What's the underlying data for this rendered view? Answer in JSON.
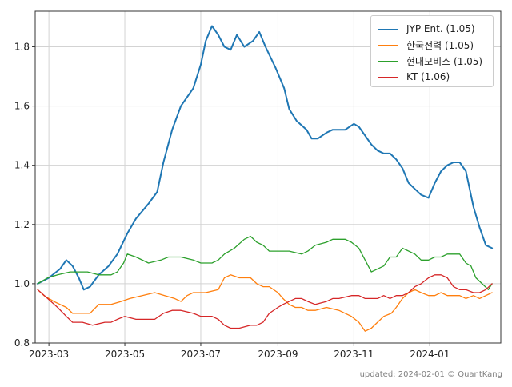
{
  "chart_data": {
    "type": "line",
    "title": "",
    "xlabel": "",
    "ylabel": "",
    "ylim": [
      0.8,
      1.92
    ],
    "xlim": [
      "2023-02-18",
      "2024-02-27"
    ],
    "grid": true,
    "legend_position": "top-right",
    "x_tick_labels": [
      "2023-03",
      "2023-05",
      "2023-07",
      "2023-09",
      "2023-11",
      "2024-01"
    ],
    "x_tick_dates": [
      "2023-03-01",
      "2023-05-01",
      "2023-07-01",
      "2023-09-01",
      "2023-11-01",
      "2024-01-01"
    ],
    "y_tick_labels": [
      "0.8",
      "1.0",
      "1.2",
      "1.4",
      "1.6",
      "1.8"
    ],
    "y_ticks": [
      0.8,
      1.0,
      1.2,
      1.4,
      1.6,
      1.8
    ],
    "series": [
      {
        "name": "JYP Ent. (1.05)",
        "color": "#1f77b4",
        "points": [
          [
            "2023-02-20",
            1.0
          ],
          [
            "2023-03-01",
            1.02
          ],
          [
            "2023-03-10",
            1.05
          ],
          [
            "2023-03-15",
            1.08
          ],
          [
            "2023-03-20",
            1.06
          ],
          [
            "2023-03-25",
            1.02
          ],
          [
            "2023-03-29",
            0.98
          ],
          [
            "2023-04-03",
            0.99
          ],
          [
            "2023-04-10",
            1.03
          ],
          [
            "2023-04-18",
            1.06
          ],
          [
            "2023-04-25",
            1.1
          ],
          [
            "2023-05-03",
            1.17
          ],
          [
            "2023-05-10",
            1.22
          ],
          [
            "2023-05-20",
            1.27
          ],
          [
            "2023-05-27",
            1.31
          ],
          [
            "2023-06-01",
            1.41
          ],
          [
            "2023-06-08",
            1.52
          ],
          [
            "2023-06-15",
            1.6
          ],
          [
            "2023-06-25",
            1.66
          ],
          [
            "2023-07-01",
            1.74
          ],
          [
            "2023-07-05",
            1.82
          ],
          [
            "2023-07-10",
            1.87
          ],
          [
            "2023-07-15",
            1.84
          ],
          [
            "2023-07-20",
            1.8
          ],
          [
            "2023-07-25",
            1.79
          ],
          [
            "2023-07-30",
            1.84
          ],
          [
            "2023-08-05",
            1.8
          ],
          [
            "2023-08-12",
            1.82
          ],
          [
            "2023-08-17",
            1.85
          ],
          [
            "2023-08-22",
            1.8
          ],
          [
            "2023-08-30",
            1.73
          ],
          [
            "2023-09-06",
            1.66
          ],
          [
            "2023-09-10",
            1.59
          ],
          [
            "2023-09-16",
            1.55
          ],
          [
            "2023-09-24",
            1.52
          ],
          [
            "2023-09-28",
            1.49
          ],
          [
            "2023-10-03",
            1.49
          ],
          [
            "2023-10-10",
            1.51
          ],
          [
            "2023-10-15",
            1.52
          ],
          [
            "2023-10-25",
            1.52
          ],
          [
            "2023-11-01",
            1.54
          ],
          [
            "2023-11-05",
            1.53
          ],
          [
            "2023-11-10",
            1.5
          ],
          [
            "2023-11-15",
            1.47
          ],
          [
            "2023-11-20",
            1.45
          ],
          [
            "2023-11-25",
            1.44
          ],
          [
            "2023-11-30",
            1.44
          ],
          [
            "2023-12-05",
            1.42
          ],
          [
            "2023-12-10",
            1.39
          ],
          [
            "2023-12-15",
            1.34
          ],
          [
            "2023-12-20",
            1.32
          ],
          [
            "2023-12-25",
            1.3
          ],
          [
            "2023-12-31",
            1.29
          ],
          [
            "2024-01-05",
            1.34
          ],
          [
            "2024-01-10",
            1.38
          ],
          [
            "2024-01-15",
            1.4
          ],
          [
            "2024-01-20",
            1.41
          ],
          [
            "2024-01-25",
            1.41
          ],
          [
            "2024-01-30",
            1.38
          ],
          [
            "2024-02-05",
            1.26
          ],
          [
            "2024-02-10",
            1.19
          ],
          [
            "2024-02-15",
            1.13
          ],
          [
            "2024-02-20",
            1.12
          ]
        ]
      },
      {
        "name": "한국전력 (1.05)",
        "color": "#ff7f0e",
        "points": [
          [
            "2023-02-20",
            0.98
          ],
          [
            "2023-02-25",
            0.96
          ],
          [
            "2023-03-05",
            0.94
          ],
          [
            "2023-03-15",
            0.92
          ],
          [
            "2023-03-20",
            0.9
          ],
          [
            "2023-03-28",
            0.9
          ],
          [
            "2023-04-03",
            0.9
          ],
          [
            "2023-04-10",
            0.93
          ],
          [
            "2023-04-20",
            0.93
          ],
          [
            "2023-04-28",
            0.94
          ],
          [
            "2023-05-05",
            0.95
          ],
          [
            "2023-05-15",
            0.96
          ],
          [
            "2023-05-25",
            0.97
          ],
          [
            "2023-06-02",
            0.96
          ],
          [
            "2023-06-10",
            0.95
          ],
          [
            "2023-06-15",
            0.94
          ],
          [
            "2023-06-20",
            0.96
          ],
          [
            "2023-06-25",
            0.97
          ],
          [
            "2023-07-05",
            0.97
          ],
          [
            "2023-07-15",
            0.98
          ],
          [
            "2023-07-20",
            1.02
          ],
          [
            "2023-07-25",
            1.03
          ],
          [
            "2023-08-01",
            1.02
          ],
          [
            "2023-08-10",
            1.02
          ],
          [
            "2023-08-15",
            1.0
          ],
          [
            "2023-08-20",
            0.99
          ],
          [
            "2023-08-25",
            0.99
          ],
          [
            "2023-09-01",
            0.97
          ],
          [
            "2023-09-05",
            0.95
          ],
          [
            "2023-09-10",
            0.93
          ],
          [
            "2023-09-15",
            0.92
          ],
          [
            "2023-09-20",
            0.92
          ],
          [
            "2023-09-25",
            0.91
          ],
          [
            "2023-10-01",
            0.91
          ],
          [
            "2023-10-10",
            0.92
          ],
          [
            "2023-10-20",
            0.91
          ],
          [
            "2023-10-25",
            0.9
          ],
          [
            "2023-10-30",
            0.89
          ],
          [
            "2023-11-05",
            0.87
          ],
          [
            "2023-11-10",
            0.84
          ],
          [
            "2023-11-15",
            0.85
          ],
          [
            "2023-11-20",
            0.87
          ],
          [
            "2023-11-25",
            0.89
          ],
          [
            "2023-12-01",
            0.9
          ],
          [
            "2023-12-05",
            0.92
          ],
          [
            "2023-12-10",
            0.95
          ],
          [
            "2023-12-15",
            0.97
          ],
          [
            "2023-12-20",
            0.98
          ],
          [
            "2023-12-25",
            0.97
          ],
          [
            "2023-12-31",
            0.96
          ],
          [
            "2024-01-05",
            0.96
          ],
          [
            "2024-01-10",
            0.97
          ],
          [
            "2024-01-15",
            0.96
          ],
          [
            "2024-01-20",
            0.96
          ],
          [
            "2024-01-25",
            0.96
          ],
          [
            "2024-01-30",
            0.95
          ],
          [
            "2024-02-05",
            0.96
          ],
          [
            "2024-02-10",
            0.95
          ],
          [
            "2024-02-15",
            0.96
          ],
          [
            "2024-02-20",
            0.97
          ]
        ]
      },
      {
        "name": "현대모비스 (1.05)",
        "color": "#2ca02c",
        "points": [
          [
            "2023-02-20",
            1.0
          ],
          [
            "2023-02-28",
            1.02
          ],
          [
            "2023-03-08",
            1.03
          ],
          [
            "2023-03-18",
            1.04
          ],
          [
            "2023-03-25",
            1.04
          ],
          [
            "2023-04-01",
            1.04
          ],
          [
            "2023-04-10",
            1.03
          ],
          [
            "2023-04-20",
            1.03
          ],
          [
            "2023-04-25",
            1.04
          ],
          [
            "2023-04-30",
            1.07
          ],
          [
            "2023-05-03",
            1.1
          ],
          [
            "2023-05-10",
            1.09
          ],
          [
            "2023-05-20",
            1.07
          ],
          [
            "2023-05-30",
            1.08
          ],
          [
            "2023-06-05",
            1.09
          ],
          [
            "2023-06-15",
            1.09
          ],
          [
            "2023-06-25",
            1.08
          ],
          [
            "2023-07-01",
            1.07
          ],
          [
            "2023-07-10",
            1.07
          ],
          [
            "2023-07-15",
            1.08
          ],
          [
            "2023-07-20",
            1.1
          ],
          [
            "2023-07-28",
            1.12
          ],
          [
            "2023-08-05",
            1.15
          ],
          [
            "2023-08-10",
            1.16
          ],
          [
            "2023-08-15",
            1.14
          ],
          [
            "2023-08-20",
            1.13
          ],
          [
            "2023-08-25",
            1.11
          ],
          [
            "2023-09-01",
            1.11
          ],
          [
            "2023-09-10",
            1.11
          ],
          [
            "2023-09-20",
            1.1
          ],
          [
            "2023-09-25",
            1.11
          ],
          [
            "2023-10-01",
            1.13
          ],
          [
            "2023-10-10",
            1.14
          ],
          [
            "2023-10-15",
            1.15
          ],
          [
            "2023-10-25",
            1.15
          ],
          [
            "2023-10-30",
            1.14
          ],
          [
            "2023-11-05",
            1.12
          ],
          [
            "2023-11-10",
            1.08
          ],
          [
            "2023-11-15",
            1.04
          ],
          [
            "2023-11-20",
            1.05
          ],
          [
            "2023-11-25",
            1.06
          ],
          [
            "2023-11-30",
            1.09
          ],
          [
            "2023-12-05",
            1.09
          ],
          [
            "2023-12-10",
            1.12
          ],
          [
            "2023-12-15",
            1.11
          ],
          [
            "2023-12-20",
            1.1
          ],
          [
            "2023-12-25",
            1.08
          ],
          [
            "2023-12-31",
            1.08
          ],
          [
            "2024-01-05",
            1.09
          ],
          [
            "2024-01-10",
            1.09
          ],
          [
            "2024-01-15",
            1.1
          ],
          [
            "2024-01-20",
            1.1
          ],
          [
            "2024-01-25",
            1.1
          ],
          [
            "2024-01-30",
            1.07
          ],
          [
            "2024-02-03",
            1.06
          ],
          [
            "2024-02-07",
            1.02
          ],
          [
            "2024-02-12",
            1.0
          ],
          [
            "2024-02-17",
            0.98
          ],
          [
            "2024-02-20",
            1.0
          ]
        ]
      },
      {
        "name": "KT (1.06)",
        "color": "#d62728",
        "points": [
          [
            "2023-02-20",
            0.98
          ],
          [
            "2023-02-28",
            0.95
          ],
          [
            "2023-03-08",
            0.92
          ],
          [
            "2023-03-15",
            0.89
          ],
          [
            "2023-03-20",
            0.87
          ],
          [
            "2023-03-28",
            0.87
          ],
          [
            "2023-04-05",
            0.86
          ],
          [
            "2023-04-15",
            0.87
          ],
          [
            "2023-04-20",
            0.87
          ],
          [
            "2023-04-25",
            0.88
          ],
          [
            "2023-05-01",
            0.89
          ],
          [
            "2023-05-10",
            0.88
          ],
          [
            "2023-05-20",
            0.88
          ],
          [
            "2023-05-25",
            0.88
          ],
          [
            "2023-06-01",
            0.9
          ],
          [
            "2023-06-08",
            0.91
          ],
          [
            "2023-06-15",
            0.91
          ],
          [
            "2023-06-25",
            0.9
          ],
          [
            "2023-07-01",
            0.89
          ],
          [
            "2023-07-10",
            0.89
          ],
          [
            "2023-07-15",
            0.88
          ],
          [
            "2023-07-20",
            0.86
          ],
          [
            "2023-07-25",
            0.85
          ],
          [
            "2023-08-01",
            0.85
          ],
          [
            "2023-08-10",
            0.86
          ],
          [
            "2023-08-15",
            0.86
          ],
          [
            "2023-08-20",
            0.87
          ],
          [
            "2023-08-25",
            0.9
          ],
          [
            "2023-09-01",
            0.92
          ],
          [
            "2023-09-05",
            0.93
          ],
          [
            "2023-09-10",
            0.94
          ],
          [
            "2023-09-15",
            0.95
          ],
          [
            "2023-09-20",
            0.95
          ],
          [
            "2023-09-25",
            0.94
          ],
          [
            "2023-10-01",
            0.93
          ],
          [
            "2023-10-10",
            0.94
          ],
          [
            "2023-10-15",
            0.95
          ],
          [
            "2023-10-20",
            0.95
          ],
          [
            "2023-10-30",
            0.96
          ],
          [
            "2023-11-05",
            0.96
          ],
          [
            "2023-11-10",
            0.95
          ],
          [
            "2023-11-15",
            0.95
          ],
          [
            "2023-11-20",
            0.95
          ],
          [
            "2023-11-25",
            0.96
          ],
          [
            "2023-11-30",
            0.95
          ],
          [
            "2023-12-05",
            0.96
          ],
          [
            "2023-12-10",
            0.96
          ],
          [
            "2023-12-15",
            0.97
          ],
          [
            "2023-12-20",
            0.99
          ],
          [
            "2023-12-25",
            1.0
          ],
          [
            "2023-12-31",
            1.02
          ],
          [
            "2024-01-05",
            1.03
          ],
          [
            "2024-01-10",
            1.03
          ],
          [
            "2024-01-15",
            1.02
          ],
          [
            "2024-01-20",
            0.99
          ],
          [
            "2024-01-25",
            0.98
          ],
          [
            "2024-01-30",
            0.98
          ],
          [
            "2024-02-05",
            0.97
          ],
          [
            "2024-02-10",
            0.97
          ],
          [
            "2024-02-15",
            0.98
          ],
          [
            "2024-02-20",
            1.0
          ]
        ]
      }
    ]
  },
  "footer": {
    "text": "updated: 2024-02-01 © QuantKang"
  }
}
